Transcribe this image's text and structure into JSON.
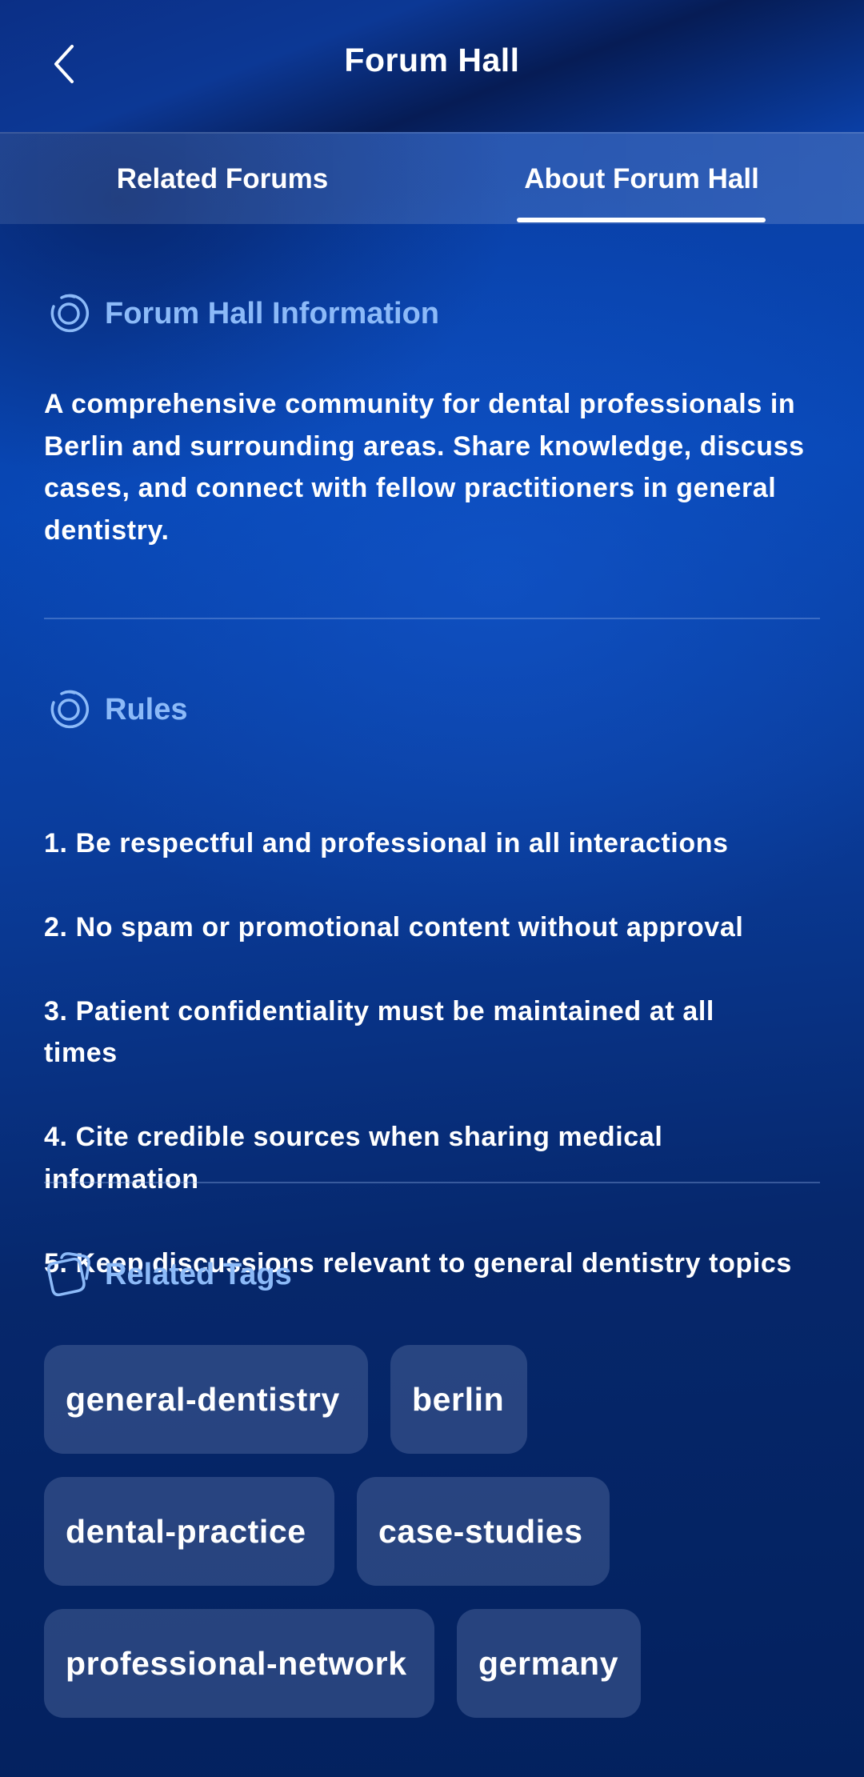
{
  "header": {
    "title": "Forum Hall",
    "back_icon": "chevron-left-icon"
  },
  "tabs": [
    {
      "label": "Related Forums",
      "active": false
    },
    {
      "label": "About Forum Hall",
      "active": true
    }
  ],
  "sections": {
    "info": {
      "heading": "Forum Hall Information",
      "icon": "circle-ring-icon",
      "text": "A comprehensive community for dental professionals in Berlin and surrounding areas. Share knowledge, discuss cases, and connect with fellow practitioners in general dentistry."
    },
    "rules": {
      "heading": "Rules",
      "icon": "circle-ring-icon",
      "items": [
        "1. Be respectful and professional in all interactions",
        "2. No spam or promotional content without approval",
        "3. Patient confidentiality must be maintained at all times",
        "4. Cite credible sources when sharing medical information",
        "5. Keep discussions relevant to general dentistry topics"
      ]
    },
    "tags": {
      "heading": "Related Tags",
      "icon": "tag-icon",
      "items": [
        "general-dentistry",
        "berlin",
        "dental-practice",
        "case-studies",
        "professional-network",
        "germany"
      ]
    }
  },
  "colors": {
    "accent_heading": "#8cbaf8",
    "background_top": "#0a3a9c",
    "background_bottom": "#03215e",
    "tag_background": "#2f4a86"
  }
}
